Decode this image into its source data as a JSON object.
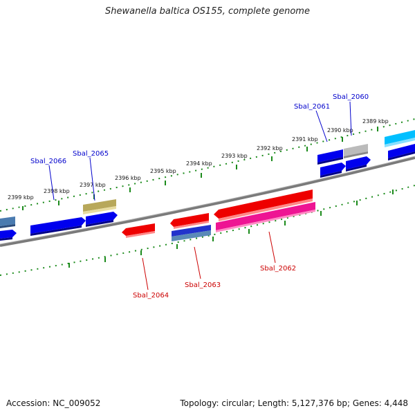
{
  "title": "Shewanella baltica OS155, complete genome",
  "footer": {
    "accession": "Accession: NC_009052",
    "summary": "Topology: circular; Length: 5,127,376 bp; Genes: 4,448"
  },
  "colors": {
    "backbone": "#808080",
    "ticks": "#1a8a1a",
    "label_top": "#0000cc",
    "label_bottom": "#cc0000"
  },
  "tick_labels": [
    "2399 kbp",
    "2398 kbp",
    "2397 kbp",
    "2396 kbp",
    "2395 kbp",
    "2394 kbp",
    "2393 kbp",
    "2392 kbp",
    "2391 kbp",
    "2390 kbp",
    "2389 kbp"
  ],
  "gene_labels": {
    "top": [
      "Sbal_2066",
      "Sbal_2065",
      "Sbal_2061",
      "Sbal_2060"
    ],
    "bottom": [
      "Sbal_2064",
      "Sbal_2063",
      "Sbal_2062"
    ]
  },
  "features": [
    {
      "color": "#4a7bb0",
      "dir": "right"
    },
    {
      "color": "#0000ee",
      "dir": "right"
    },
    {
      "color": "#0000ee",
      "dir": "right"
    },
    {
      "color": "#0000ee",
      "dir": "right"
    },
    {
      "color": "#b8a85a",
      "dir": "none"
    },
    {
      "color": "#ee0000",
      "dir": "left"
    },
    {
      "color": "#ee0000",
      "dir": "left"
    },
    {
      "color": "#2233cc",
      "dir": "none"
    },
    {
      "color": "#ee0000",
      "dir": "left"
    },
    {
      "color": "#ee1493",
      "dir": "none"
    },
    {
      "color": "#0000ee",
      "dir": "right"
    },
    {
      "color": "#0000ee",
      "dir": "right"
    },
    {
      "color": "#bbbbbb",
      "dir": "none"
    },
    {
      "color": "#0000ee",
      "dir": "right"
    },
    {
      "color": "#00bfff",
      "dir": "none"
    },
    {
      "color": "#0000ee",
      "dir": "right"
    }
  ]
}
